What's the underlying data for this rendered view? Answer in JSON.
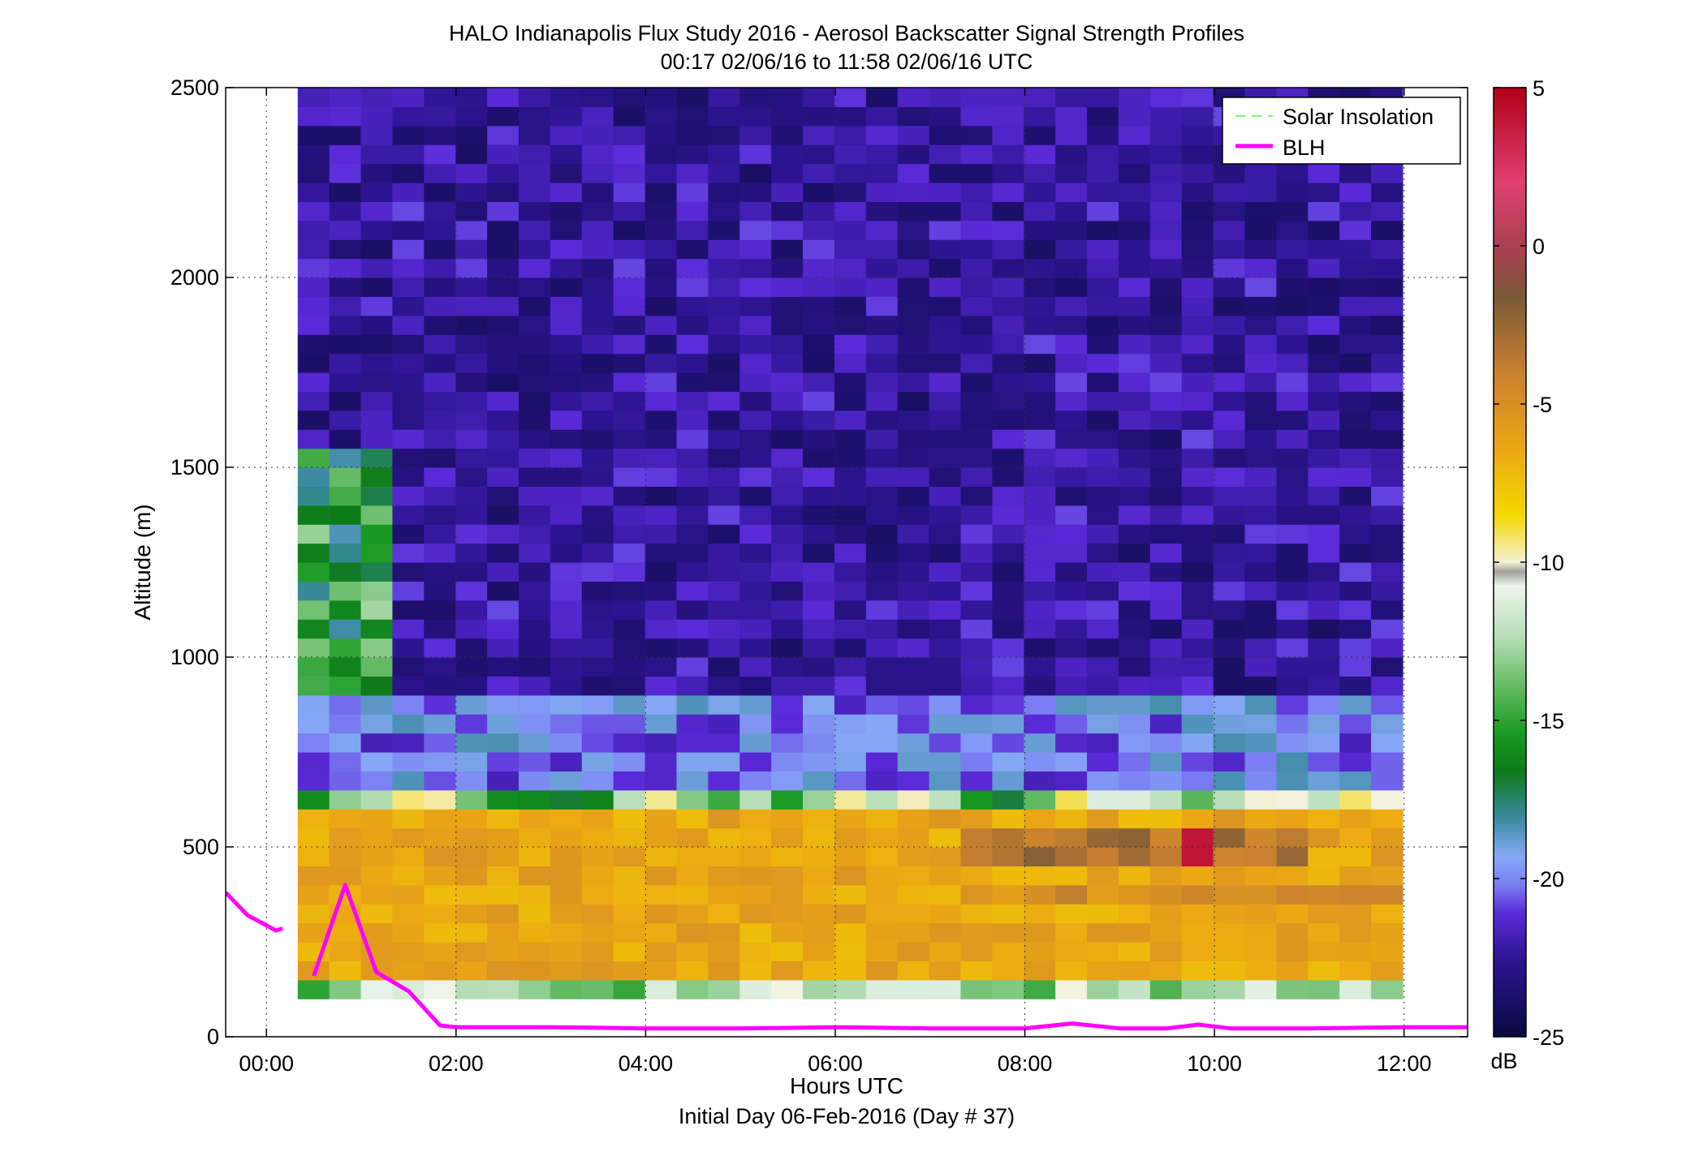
{
  "chart_data": {
    "type": "heatmap",
    "title": "HALO Indianapolis Flux Study 2016 - Aerosol Backscatter Signal Strength Profiles",
    "subtitle": "00:17 02/06/16 to 11:58 02/06/16  UTC",
    "xlabel": "Hours UTC",
    "xlabel2": "Initial Day 06-Feb-2016 (Day # 37)",
    "ylabel": "Altitude (m)",
    "xlim": [
      -0.43,
      12.67
    ],
    "ylim": [
      0,
      2500
    ],
    "x_ticks": [
      {
        "value": 0,
        "label": "00:00"
      },
      {
        "value": 2,
        "label": "02:00"
      },
      {
        "value": 4,
        "label": "04:00"
      },
      {
        "value": 6,
        "label": "06:00"
      },
      {
        "value": 8,
        "label": "08:00"
      },
      {
        "value": 10,
        "label": "10:00"
      },
      {
        "value": 12,
        "label": "12:00"
      }
    ],
    "y_ticks": [
      {
        "value": 0,
        "label": "0"
      },
      {
        "value": 500,
        "label": "500"
      },
      {
        "value": 1000,
        "label": "1000"
      },
      {
        "value": 1500,
        "label": "1500"
      },
      {
        "value": 2000,
        "label": "2000"
      },
      {
        "value": 2500,
        "label": "2500"
      }
    ],
    "grid": true,
    "heatmap": {
      "time_start": 0.33,
      "time_step": 0.333,
      "columns": 35,
      "alt_start": 100,
      "alt_step": 50,
      "rows": 48
    },
    "colorbar": {
      "range": [
        -25,
        5
      ],
      "unit": "dB",
      "ticks": [
        {
          "value": 5,
          "label": "5"
        },
        {
          "value": 0,
          "label": "0"
        },
        {
          "value": -5,
          "label": "-5"
        },
        {
          "value": -10,
          "label": "-10"
        },
        {
          "value": -15,
          "label": "-15"
        },
        {
          "value": -20,
          "label": "-20"
        },
        {
          "value": -25,
          "label": "-25"
        }
      ]
    },
    "series": [
      {
        "name": "Solar Insolation",
        "values": []
      },
      {
        "name": "BLH",
        "segments": [
          {
            "x": [
              -0.43,
              -0.2,
              0.1,
              0.17
            ],
            "y": [
              380,
              320,
              280,
              285
            ]
          },
          {
            "x": [
              0.5,
              0.83,
              1.16,
              1.5,
              1.83,
              2.0,
              3.0,
              4.0,
              5.0,
              6.0,
              7.0,
              8.0,
              8.5,
              9.0,
              9.5,
              9.83,
              10.17,
              11.0,
              12.0,
              12.67
            ],
            "y": [
              160,
              400,
              170,
              120,
              30,
              25,
              25,
              22,
              22,
              25,
              22,
              22,
              35,
              22,
              22,
              32,
              22,
              22,
              25,
              25
            ]
          }
        ]
      }
    ],
    "legend": "top-right"
  }
}
